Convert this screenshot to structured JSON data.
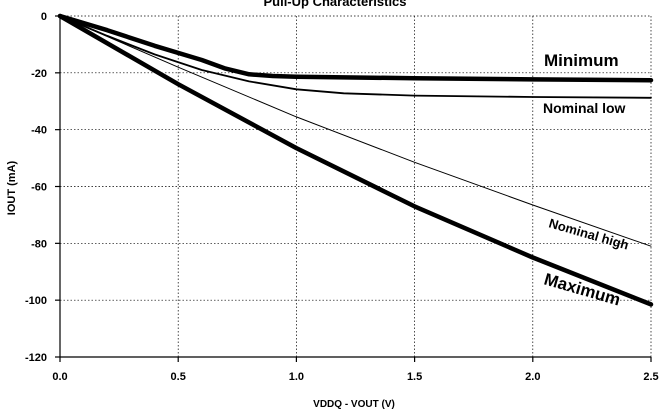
{
  "chart_data": {
    "type": "line",
    "title": "Pull-Up Characteristics",
    "xlabel": "VDDQ - VOUT (V)",
    "ylabel": "IOUT (mA)",
    "xlim": [
      0,
      2.5
    ],
    "ylim": [
      -120,
      0
    ],
    "xticks": [
      0.0,
      0.5,
      1.0,
      1.5,
      2.0,
      2.5
    ],
    "xtick_labels": [
      "0.0",
      "0.5",
      "1.0",
      "1.5",
      "2.0",
      "2.5"
    ],
    "yticks": [
      0,
      -20,
      -40,
      -60,
      -80,
      -100,
      -120
    ],
    "ytick_labels": [
      "0",
      "-20",
      "-40",
      "-60",
      "-80",
      "-100",
      "-120"
    ],
    "grid": true,
    "series": [
      {
        "name": "Minimum",
        "x": [
          0,
          0.2,
          0.4,
          0.6,
          0.7,
          0.8,
          0.9,
          1.0,
          1.5,
          2.0,
          2.5
        ],
        "y": [
          0,
          -5,
          -10.5,
          -15.5,
          -18.5,
          -20.5,
          -21.1,
          -21.4,
          -21.9,
          -22.3,
          -22.6
        ]
      },
      {
        "name": "Nominal low",
        "x": [
          0,
          0.2,
          0.4,
          0.6,
          0.8,
          1.0,
          1.2,
          1.5,
          2.0,
          2.5
        ],
        "y": [
          0,
          -7,
          -13.5,
          -19,
          -23,
          -25.8,
          -27.2,
          -28,
          -28.5,
          -28.8
        ]
      },
      {
        "name": "Nominal high",
        "x": [
          0,
          0.5,
          1.0,
          1.5,
          2.0,
          2.5
        ],
        "y": [
          0,
          -18,
          -35.5,
          -51.5,
          -66.5,
          -81
        ]
      },
      {
        "name": "Maximum",
        "x": [
          0,
          0.5,
          1.0,
          1.5,
          2.0,
          2.5
        ],
        "y": [
          0,
          -24,
          -46.5,
          -67,
          -85,
          -101.5
        ]
      }
    ]
  }
}
